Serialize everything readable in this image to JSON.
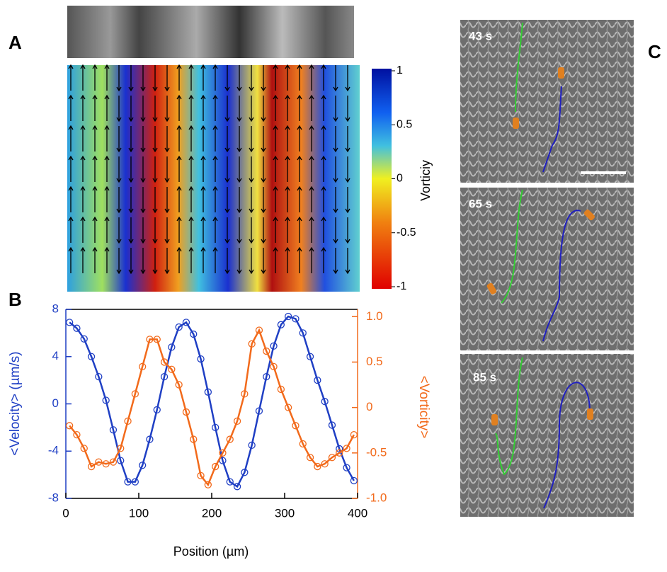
{
  "panel_labels": [
    "A",
    "B",
    "C"
  ],
  "panel_a": {
    "colorbar": {
      "label": "Vorticiy",
      "lim": [
        -1,
        1
      ],
      "ticks": [
        1,
        0.5,
        0,
        -0.5,
        -1
      ]
    }
  },
  "panel_c": {
    "frames": [
      "43 s",
      "65 s",
      "85 s"
    ]
  },
  "chart_data": {
    "type": "line",
    "xlabel": "Position (µm)",
    "ylabel": "<Velocity> (µm/s)",
    "y2label": "<Vorticity>",
    "x": [
      5,
      15,
      25,
      35,
      45,
      55,
      65,
      75,
      85,
      95,
      105,
      115,
      125,
      135,
      145,
      155,
      165,
      175,
      185,
      195,
      205,
      215,
      225,
      235,
      245,
      255,
      265,
      275,
      285,
      295,
      305,
      315,
      325,
      335,
      345,
      355,
      365,
      375,
      385,
      395
    ],
    "series": [
      {
        "color": "#1f3fc4",
        "axis": "y",
        "values": [
          6.9,
          6.4,
          5.5,
          4.0,
          2.3,
          0.3,
          -2.2,
          -4.8,
          -6.6,
          -6.6,
          -5.2,
          -3.0,
          -0.5,
          2.3,
          4.8,
          6.5,
          6.9,
          5.9,
          3.8,
          1.0,
          -2.0,
          -4.8,
          -6.6,
          -7.0,
          -5.8,
          -3.5,
          -0.6,
          2.3,
          4.9,
          6.7,
          7.4,
          7.2,
          6.0,
          4.0,
          2.0,
          0.2,
          -1.8,
          -3.8,
          -5.4,
          -6.5
        ]
      },
      {
        "color": "#f26a1b",
        "axis": "y2",
        "values": [
          -0.2,
          -0.3,
          -0.45,
          -0.65,
          -0.6,
          -0.62,
          -0.6,
          -0.45,
          -0.15,
          0.15,
          0.45,
          0.75,
          0.75,
          0.5,
          0.42,
          0.25,
          -0.05,
          -0.35,
          -0.75,
          -0.85,
          -0.65,
          -0.5,
          -0.35,
          -0.15,
          0.15,
          0.7,
          0.85,
          0.62,
          0.45,
          0.2,
          0,
          -0.2,
          -0.4,
          -0.55,
          -0.65,
          -0.62,
          -0.55,
          -0.5,
          -0.45,
          -0.3
        ]
      }
    ],
    "xlim": [
      0,
      400
    ],
    "xticks": [
      0,
      100,
      200,
      300,
      400
    ],
    "ylim": [
      -8,
      8
    ],
    "yticks": [
      -8,
      -4,
      0,
      4,
      8
    ],
    "y2lim": [
      -1,
      1.08
    ],
    "y2ticks": [
      {
        "value": -1,
        "label": "-1.0"
      },
      -0.5,
      0,
      0.5,
      {
        "value": 1,
        "label": "1.0"
      }
    ],
    "marker": "circle"
  }
}
